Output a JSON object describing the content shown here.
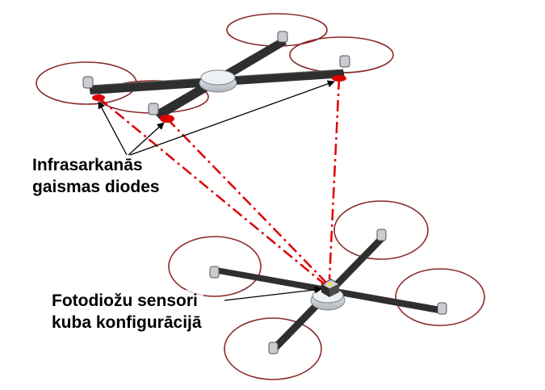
{
  "labels": {
    "infrared_leds": {
      "line1": "Infrasarkanās",
      "line2": "gaismas diodes"
    },
    "photodiode_sensors": {
      "line1": "Fotodiožu sensori",
      "line2": "kuba konfigurācijā"
    }
  },
  "colors": {
    "rotor_ring": "#8a2a2a",
    "arm": "#2f2f2f",
    "hub": "#d9dde2",
    "led": "#e00000",
    "beam": "#e00000",
    "arrow": "#000000",
    "sensor": "#f2e600"
  },
  "icons": {
    "upper_drone": "quadcopter",
    "lower_drone": "quadcopter",
    "led_marker": "infrared-led",
    "sensor_cube": "photodiode-cube"
  }
}
